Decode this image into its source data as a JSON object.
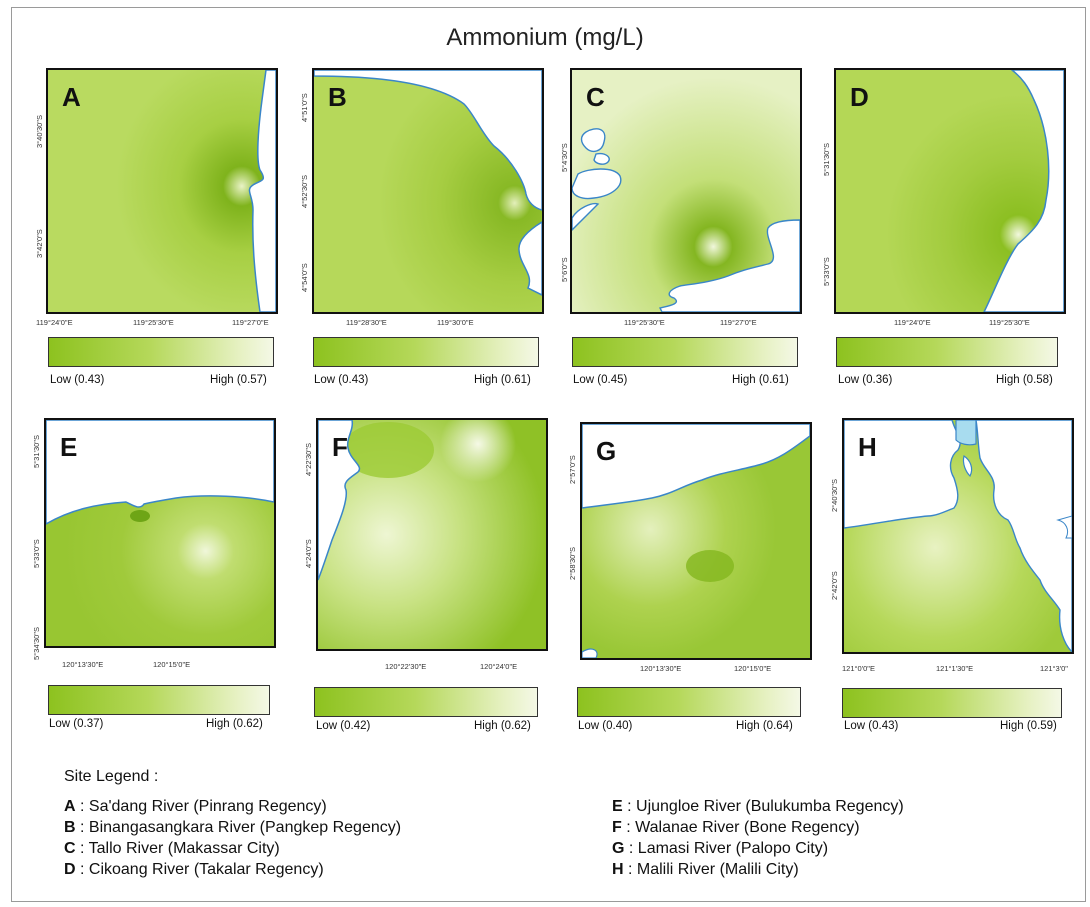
{
  "title": "Ammonium (mg/L)",
  "panels": [
    {
      "letter": "A",
      "lat": [
        "3°40'30\"S",
        "3°42'0\"S"
      ],
      "lon": [
        "119°24'0\"E",
        "119°25'30\"E",
        "119°27'0\"E"
      ],
      "low": "Low (0.43)",
      "high": "High  (0.57)"
    },
    {
      "letter": "B",
      "lat": [
        "4°51'0\"S",
        "4°52'30\"S",
        "4°54'0\"S"
      ],
      "lon": [
        "119°28'30\"E",
        "119°30'0\"E"
      ],
      "low": "Low (0.43)",
      "high": "High  (0.61)"
    },
    {
      "letter": "C",
      "lat": [
        "5°4'30\"S",
        "5°6'0\"S"
      ],
      "lon": [
        "119°25'30\"E",
        "119°27'0\"E"
      ],
      "low": "Low (0.45)",
      "high": "High  (0.61)"
    },
    {
      "letter": "D",
      "lat": [
        "5°31'30\"S",
        "5°33'0\"S"
      ],
      "lon": [
        "119°24'0\"E",
        "119°25'30\"E"
      ],
      "low": "Low (0.36)",
      "high": "High  (0.58)"
    },
    {
      "letter": "E",
      "lat": [
        "5°31'30\"S",
        "5°33'0\"S",
        "5°34'30\"S"
      ],
      "lon": [
        "120°13'30\"E",
        "120°15'0\"E"
      ],
      "low": "Low (0.37)",
      "high": "High (0.62)"
    },
    {
      "letter": "F",
      "lat": [
        "4°22'30\"S",
        "4°24'0\"S"
      ],
      "lon": [
        "120°22'30\"E",
        "120°24'0\"E"
      ],
      "low": "Low (0.42)",
      "high": "High (0.62)"
    },
    {
      "letter": "G",
      "lat": [
        "2°57'0\"S",
        "2°58'30\"S"
      ],
      "lon": [
        "120°13'30\"E",
        "120°15'0\"E"
      ],
      "low": "Low  (0.40)",
      "high": "High (0.64)"
    },
    {
      "letter": "H",
      "lat": [
        "2°40'30\"S",
        "2°42'0\"S"
      ],
      "lon": [
        "121°0'0\"E",
        "121°1'30\"E",
        "121°3'0\""
      ],
      "low": "Low  (0.43)",
      "high": "High  (0.59)"
    }
  ],
  "site_legend": {
    "title": "Site Legend :",
    "left": [
      {
        "key": "A",
        "text": " : Sa'dang River (Pinrang Regency)"
      },
      {
        "key": "B",
        "text": " : Binangasangkara River (Pangkep Regency)"
      },
      {
        "key": "C",
        "text": " : Tallo River (Makassar City)"
      },
      {
        "key": "D",
        "text": " : Cikoang River (Takalar Regency)"
      }
    ],
    "right": [
      {
        "key": "E",
        "text": " : Ujungloe River (Bulukumba Regency)"
      },
      {
        "key": "F",
        "text": " : Walanae River (Bone Regency)"
      },
      {
        "key": "G",
        "text": " : Lamasi River (Palopo City)"
      },
      {
        "key": "H",
        "text": " : Malili River (Malili City)"
      }
    ]
  },
  "colors": {
    "low": "#8dc21f",
    "high": "#f4f8e6",
    "coast": "#3a86c8",
    "water": "#ffffff",
    "frame": "#111111"
  }
}
